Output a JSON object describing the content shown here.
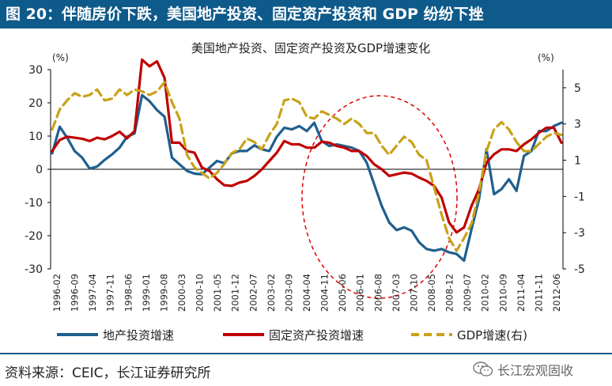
{
  "header": {
    "title": "图 20：伴随房价下跌，美国地产投资、固定资产投资和 GDP 纷纷下挫"
  },
  "footer": {
    "source": "资料来源：CEIC，长江证券研究所",
    "watermark": "长江宏观固收"
  },
  "chart_data": {
    "type": "line",
    "title": "美国地产投资、固定资产投资及GDP增速变化",
    "left_unit": "(%)",
    "right_unit": "(%)",
    "y_left": {
      "min": -30,
      "max": 30,
      "ticks": [
        30,
        20,
        10,
        0,
        -10,
        -20,
        -30
      ]
    },
    "y_right": {
      "min": -5,
      "max": 6,
      "ticks": [
        5,
        3,
        1,
        -1,
        -3,
        -5
      ]
    },
    "x_labels": [
      "1996-02",
      "1996-09",
      "1997-04",
      "1997-11",
      "1998-06",
      "1999-01",
      "1999-08",
      "2000-03",
      "2000-10",
      "2001-05",
      "2001-12",
      "2002-07",
      "2003-02",
      "2003-09",
      "2004-04",
      "2004-11",
      "2005-06",
      "2006-01",
      "2006-08",
      "2007-03",
      "2007-10",
      "2008-05",
      "2008-12",
      "2009-07",
      "2010-02",
      "2010-09",
      "2011-04",
      "2011-11",
      "2012-06"
    ],
    "series": [
      {
        "name": "地产投资增速",
        "axis": "left",
        "color": "#1f5f8f",
        "dash": "solid",
        "values": [
          4.8,
          12.8,
          9.5,
          5.5,
          3.5,
          0.2,
          0.8,
          2.8,
          4.5,
          6.5,
          9.8,
          10.8,
          22.3,
          20.5,
          17.8,
          15.8,
          3.5,
          1.5,
          -0.5,
          -1.3,
          -1.5,
          0.5,
          2.5,
          1.8,
          4.8,
          5.5,
          5.5,
          7.2,
          6.0,
          5.5,
          9.8,
          12.5,
          12.0,
          13.0,
          11.5,
          14.0,
          8.5,
          7.0,
          7.5,
          7.0,
          6.5,
          5.5,
          2.0,
          -4.5,
          -11.0,
          -16.0,
          -18.3,
          -17.5,
          -18.5,
          -22.0,
          -24.0,
          -24.5,
          -24.0,
          -25.0,
          -25.5,
          -27.5,
          -18.0,
          -9.0,
          6.0,
          -7.5,
          -6.0,
          -3.0,
          -6.5,
          4.0,
          5.5,
          11.5,
          11.5,
          13.0,
          14.0
        ]
      },
      {
        "name": "固定资产投资增速",
        "axis": "left",
        "color": "#c00000",
        "dash": "solid",
        "values": [
          5.5,
          8.8,
          9.8,
          9.5,
          9.2,
          8.5,
          9.5,
          9.0,
          10.0,
          11.3,
          9.3,
          11.5,
          33.0,
          31.0,
          32.5,
          27.5,
          8.0,
          8.0,
          5.5,
          5.0,
          0.5,
          -0.5,
          -3.0,
          -4.8,
          -5.0,
          -4.0,
          -3.5,
          -2.0,
          0.0,
          2.5,
          5.0,
          8.5,
          7.5,
          7.5,
          6.5,
          6.5,
          8.3,
          8.0,
          7.0,
          6.5,
          5.5,
          5.5,
          4.0,
          1.5,
          0.0,
          -2.0,
          -1.5,
          -1.0,
          -1.3,
          -2.5,
          -3.5,
          -5.0,
          -8.5,
          -16.0,
          -19.0,
          -17.5,
          -11.0,
          -6.0,
          2.0,
          4.5,
          6.0,
          6.0,
          5.5,
          7.5,
          9.0,
          11.0,
          12.5,
          12.5,
          8.0
        ]
      },
      {
        "name": "GDP增速(右)",
        "axis": "right",
        "color": "#c8a21a",
        "dash": "dashed",
        "values": [
          2.7,
          3.8,
          4.3,
          4.7,
          4.5,
          4.6,
          4.9,
          4.3,
          4.4,
          4.9,
          4.6,
          4.9,
          4.8,
          4.6,
          4.8,
          5.3,
          4.2,
          3.3,
          1.3,
          0.6,
          0.3,
          0.0,
          0.3,
          0.8,
          1.4,
          1.6,
          2.2,
          2.0,
          1.6,
          2.4,
          3.0,
          4.3,
          4.4,
          4.2,
          3.4,
          3.3,
          3.7,
          3.5,
          3.3,
          3.0,
          3.3,
          3.0,
          2.5,
          2.5,
          1.8,
          1.3,
          1.8,
          2.3,
          2.0,
          1.3,
          1.0,
          -0.5,
          -2.0,
          -3.3,
          -4.0,
          -3.3,
          -2.5,
          -0.8,
          1.5,
          2.7,
          3.1,
          2.7,
          2.0,
          1.5,
          1.5,
          1.9,
          2.3,
          2.5,
          2.4
        ]
      }
    ]
  }
}
